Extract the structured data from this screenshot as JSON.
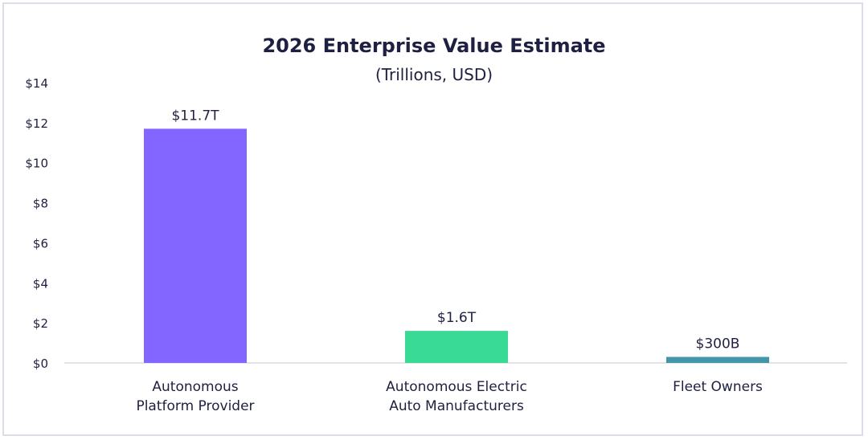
{
  "chart_data": {
    "type": "bar",
    "title": "2026 Enterprise Value Estimate",
    "subtitle": "(Trillions, USD)",
    "xlabel": "",
    "ylabel": "",
    "ylim": [
      0,
      14
    ],
    "yticks": [
      0,
      2,
      4,
      6,
      8,
      10,
      12,
      14
    ],
    "ytick_labels": [
      "$0",
      "$2",
      "$4",
      "$6",
      "$8",
      "$10",
      "$12",
      "$14"
    ],
    "grid": false,
    "legend": "none",
    "categories": [
      [
        "Autonomous",
        "Platform Provider"
      ],
      [
        "Autonomous Electric",
        "Auto Manufacturers"
      ],
      [
        "Fleet Owners"
      ]
    ],
    "values": [
      11.7,
      1.6,
      0.3
    ],
    "data_labels": [
      "$11.7T",
      "$1.6T",
      "$300B"
    ],
    "colors": [
      "#8266ff",
      "#39d996",
      "#4396a8"
    ]
  }
}
